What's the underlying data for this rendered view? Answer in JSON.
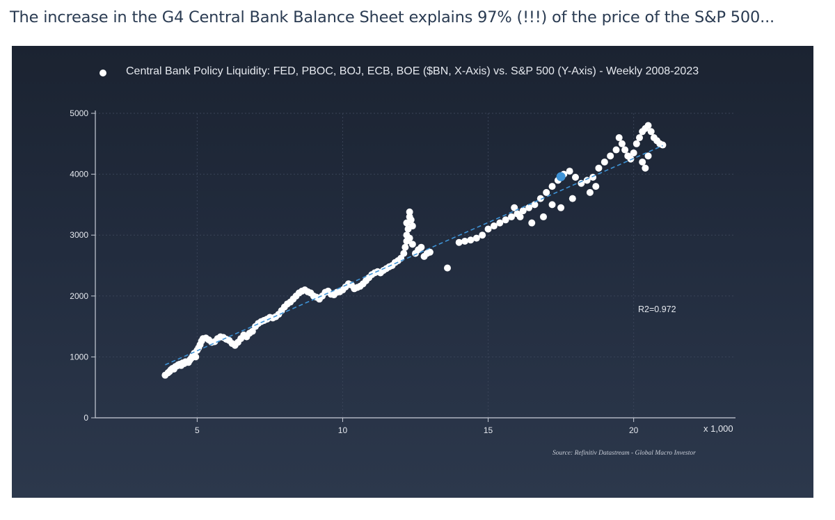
{
  "caption": "The increase in the G4 Central Bank Balance Sheet explains 97% (!!!) of the price of the S&P 500...",
  "colors": {
    "points": "#ffffff",
    "highlight": "#3f93d6",
    "trendline": "#3f93d6",
    "background": "#1f2839",
    "axis": "#c9ced8",
    "grid": "#3a4458"
  },
  "chart_data": {
    "type": "scatter",
    "title": "",
    "legend": [
      {
        "marker": "white-dot",
        "label": "Central Bank Policy Liquidity: FED, PBOC, BOJ, ECB, BOE ($BN, X-Axis) vs. S&P 500 (Y-Axis) - Weekly 2008-2023"
      }
    ],
    "legend_placement": "top",
    "xlabel": "",
    "ylabel": "",
    "x_multiplier_label": "x 1,000",
    "xlim": [
      1.5,
      23.5
    ],
    "ylim": [
      0,
      5000
    ],
    "x_ticks": [
      5,
      10,
      15,
      20
    ],
    "x_tick_labels": [
      "5",
      "10",
      "15",
      "20"
    ],
    "y_ticks": [
      0,
      1000,
      2000,
      3000,
      4000,
      5000
    ],
    "y_tick_labels": [
      "0",
      "1000",
      "2000",
      "3000",
      "4000",
      "5000"
    ],
    "grid": true,
    "annotations": {
      "r_squared": "R2=0.972",
      "source": "Source: Refinitiv Datastream - Global Macro Investor"
    },
    "trendline": {
      "style": "dashed",
      "x": [
        3.9,
        21.0
      ],
      "y": [
        870,
        4470
      ]
    },
    "highlight_point": {
      "x": 17.5,
      "y": 3960
    },
    "series": [
      {
        "points": [
          [
            3.9,
            700
          ],
          [
            4.0,
            740
          ],
          [
            4.05,
            760
          ],
          [
            4.1,
            790
          ],
          [
            4.15,
            810
          ],
          [
            4.2,
            800
          ],
          [
            4.25,
            840
          ],
          [
            4.3,
            850
          ],
          [
            4.35,
            870
          ],
          [
            4.4,
            880
          ],
          [
            4.45,
            860
          ],
          [
            4.5,
            900
          ],
          [
            4.55,
            890
          ],
          [
            4.6,
            920
          ],
          [
            4.7,
            910
          ],
          [
            4.75,
            950
          ],
          [
            4.8,
            980
          ],
          [
            4.85,
            1020
          ],
          [
            4.9,
            1060
          ],
          [
            4.95,
            1000
          ],
          [
            5.0,
            1110
          ],
          [
            5.05,
            1150
          ],
          [
            5.1,
            1200
          ],
          [
            5.15,
            1260
          ],
          [
            5.2,
            1300
          ],
          [
            5.3,
            1310
          ],
          [
            5.4,
            1280
          ],
          [
            5.5,
            1240
          ],
          [
            5.6,
            1250
          ],
          [
            5.7,
            1300
          ],
          [
            5.8,
            1330
          ],
          [
            5.9,
            1320
          ],
          [
            6.0,
            1290
          ],
          [
            6.1,
            1270
          ],
          [
            6.2,
            1220
          ],
          [
            6.3,
            1190
          ],
          [
            6.4,
            1240
          ],
          [
            6.5,
            1300
          ],
          [
            6.6,
            1360
          ],
          [
            6.7,
            1330
          ],
          [
            6.8,
            1390
          ],
          [
            6.9,
            1420
          ],
          [
            7.0,
            1500
          ],
          [
            7.1,
            1550
          ],
          [
            7.2,
            1580
          ],
          [
            7.3,
            1600
          ],
          [
            7.4,
            1620
          ],
          [
            7.5,
            1650
          ],
          [
            7.6,
            1640
          ],
          [
            7.7,
            1660
          ],
          [
            7.8,
            1700
          ],
          [
            7.9,
            1760
          ],
          [
            8.0,
            1820
          ],
          [
            8.1,
            1870
          ],
          [
            8.2,
            1900
          ],
          [
            8.3,
            1950
          ],
          [
            8.4,
            2000
          ],
          [
            8.5,
            2050
          ],
          [
            8.6,
            2080
          ],
          [
            8.7,
            2100
          ],
          [
            8.8,
            2070
          ],
          [
            8.9,
            2050
          ],
          [
            9.0,
            2000
          ],
          [
            9.1,
            1980
          ],
          [
            9.2,
            1950
          ],
          [
            9.3,
            2000
          ],
          [
            9.4,
            2060
          ],
          [
            9.5,
            2080
          ],
          [
            9.6,
            2030
          ],
          [
            9.7,
            2020
          ],
          [
            9.8,
            2060
          ],
          [
            9.9,
            2070
          ],
          [
            10.0,
            2100
          ],
          [
            10.1,
            2150
          ],
          [
            10.2,
            2200
          ],
          [
            10.3,
            2180
          ],
          [
            10.4,
            2120
          ],
          [
            10.5,
            2140
          ],
          [
            10.6,
            2160
          ],
          [
            10.7,
            2200
          ],
          [
            10.8,
            2250
          ],
          [
            10.9,
            2300
          ],
          [
            11.0,
            2350
          ],
          [
            11.1,
            2380
          ],
          [
            11.2,
            2400
          ],
          [
            11.3,
            2380
          ],
          [
            11.4,
            2420
          ],
          [
            11.5,
            2450
          ],
          [
            11.6,
            2480
          ],
          [
            11.7,
            2500
          ],
          [
            11.8,
            2550
          ],
          [
            11.9,
            2580
          ],
          [
            12.0,
            2620
          ],
          [
            12.1,
            2700
          ],
          [
            12.15,
            2800
          ],
          [
            12.2,
            2900
          ],
          [
            12.2,
            3000
          ],
          [
            12.25,
            3100
          ],
          [
            12.2,
            3200
          ],
          [
            12.3,
            3300
          ],
          [
            12.3,
            3380
          ],
          [
            12.35,
            3250
          ],
          [
            12.4,
            3150
          ],
          [
            12.3,
            2950
          ],
          [
            12.4,
            2850
          ],
          [
            12.5,
            2700
          ],
          [
            12.6,
            2760
          ],
          [
            12.7,
            2800
          ],
          [
            12.8,
            2650
          ],
          [
            12.9,
            2700
          ],
          [
            13.0,
            2720
          ],
          [
            13.6,
            2460
          ],
          [
            14.0,
            2880
          ],
          [
            14.2,
            2900
          ],
          [
            14.4,
            2920
          ],
          [
            14.6,
            2950
          ],
          [
            14.8,
            3000
          ],
          [
            15.0,
            3100
          ],
          [
            15.4,
            3200
          ],
          [
            15.6,
            3250
          ],
          [
            15.8,
            3300
          ],
          [
            16.0,
            3350
          ],
          [
            16.2,
            3400
          ],
          [
            16.4,
            3450
          ],
          [
            16.6,
            3500
          ],
          [
            16.8,
            3600
          ],
          [
            17.0,
            3700
          ],
          [
            17.2,
            3800
          ],
          [
            17.4,
            3900
          ],
          [
            17.6,
            4000
          ],
          [
            17.8,
            4050
          ],
          [
            18.0,
            3950
          ],
          [
            18.2,
            3850
          ],
          [
            18.4,
            3900
          ],
          [
            18.6,
            3950
          ],
          [
            18.8,
            4100
          ],
          [
            19.0,
            4200
          ],
          [
            19.2,
            4300
          ],
          [
            19.4,
            4400
          ],
          [
            19.5,
            4600
          ],
          [
            19.6,
            4500
          ],
          [
            19.7,
            4400
          ],
          [
            19.8,
            4300
          ],
          [
            19.9,
            4250
          ],
          [
            20.0,
            4350
          ],
          [
            20.1,
            4500
          ],
          [
            20.2,
            4600
          ],
          [
            20.3,
            4700
          ],
          [
            20.4,
            4750
          ],
          [
            20.5,
            4800
          ],
          [
            20.6,
            4700
          ],
          [
            20.7,
            4600
          ],
          [
            20.8,
            4550
          ],
          [
            20.9,
            4500
          ],
          [
            21.0,
            4480
          ],
          [
            20.3,
            4200
          ],
          [
            20.4,
            4100
          ],
          [
            20.5,
            4300
          ],
          [
            16.9,
            3300
          ],
          [
            17.2,
            3500
          ],
          [
            17.5,
            3450
          ],
          [
            16.5,
            3200
          ],
          [
            18.5,
            3700
          ],
          [
            18.7,
            3800
          ],
          [
            17.9,
            3600
          ],
          [
            15.2,
            3150
          ],
          [
            15.9,
            3450
          ],
          [
            16.1,
            3300
          ]
        ]
      }
    ]
  }
}
